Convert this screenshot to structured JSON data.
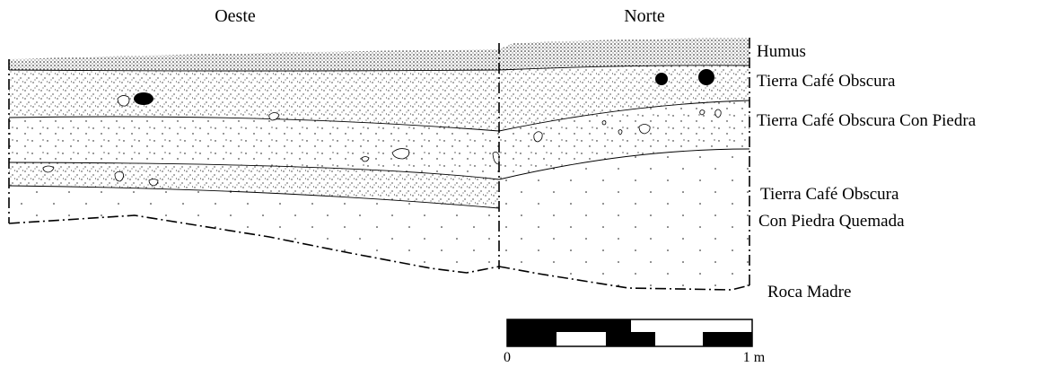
{
  "headings": {
    "west": "Oeste",
    "north": "Norte"
  },
  "layers": {
    "humus": "Humus",
    "dark_brown": "Tierra Café Obscura",
    "dark_brown_stone": "Tierra Café Obscura Con Piedra",
    "burnt_stone_line1": "Tierra Café Obscura",
    "burnt_stone_line2": "Con Piedra Quemada",
    "bedrock": "Roca Madre"
  },
  "scale": {
    "start_label": "0",
    "end_label": "1 m"
  },
  "colors": {
    "ink": "#000000",
    "paper": "#ffffff"
  }
}
